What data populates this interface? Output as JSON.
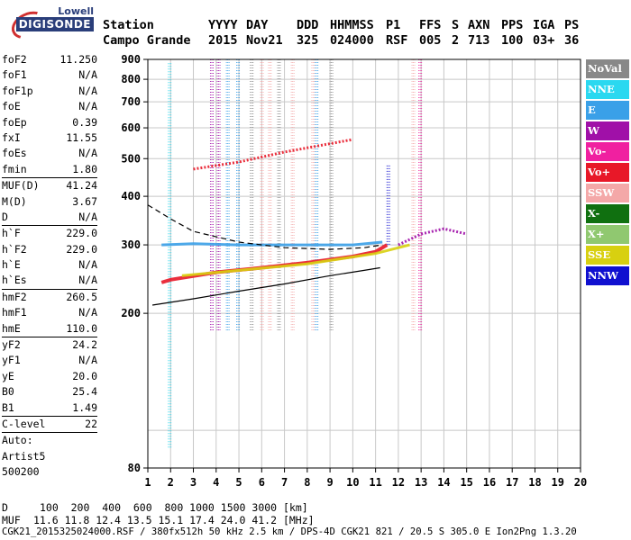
{
  "logo": {
    "line1": "Lowell",
    "line2": "DIGISONDE"
  },
  "header": {
    "labels": [
      "Station",
      "YYYY",
      "DAY",
      "DDD",
      "HHMMSS",
      "P1",
      "FFS",
      "S",
      "AXN",
      "PPS",
      "IGA",
      "PS"
    ],
    "values": [
      "Campo Grande",
      "2015",
      "Nov21",
      "325",
      "024000",
      "RSF",
      "005",
      "2",
      "713",
      "100",
      "03+",
      "36"
    ]
  },
  "params": [
    {
      "name": "foF2",
      "value": "11.250"
    },
    {
      "name": "foF1",
      "value": "N/A"
    },
    {
      "name": "foF1p",
      "value": "N/A"
    },
    {
      "name": "foE",
      "value": "N/A"
    },
    {
      "name": "foEp",
      "value": "0.39"
    },
    {
      "name": "fxI",
      "value": "11.55"
    },
    {
      "name": "foEs",
      "value": "N/A"
    },
    {
      "name": "fmin",
      "value": "1.80"
    },
    {
      "name": "MUF(D)",
      "value": "41.24"
    },
    {
      "name": "M(D)",
      "value": "3.67"
    },
    {
      "name": "D",
      "value": "N/A"
    },
    {
      "name": "h`F",
      "value": "229.0"
    },
    {
      "name": "h`F2",
      "value": "229.0"
    },
    {
      "name": "h`E",
      "value": "N/A"
    },
    {
      "name": "h`Es",
      "value": "N/A"
    },
    {
      "name": "hmF2",
      "value": "260.5"
    },
    {
      "name": "hmF1",
      "value": "N/A"
    },
    {
      "name": "hmE",
      "value": "110.0"
    },
    {
      "name": "yF2",
      "value": "24.2"
    },
    {
      "name": "yF1",
      "value": "N/A"
    },
    {
      "name": "yE",
      "value": "20.0"
    },
    {
      "name": "B0",
      "value": "25.4"
    },
    {
      "name": "B1",
      "value": "1.49"
    }
  ],
  "clevel": {
    "name": "C-level",
    "value": "22"
  },
  "auto": {
    "line1": "Auto:",
    "line2": "Artist5",
    "line3": "500200"
  },
  "legend": [
    {
      "name": "NoVal",
      "color": "#888888"
    },
    {
      "name": "NNE",
      "color": "#2ad8f0"
    },
    {
      "name": "E",
      "color": "#3aa0e8"
    },
    {
      "name": "W",
      "color": "#a010a8"
    },
    {
      "name": "Vo-",
      "color": "#f020a0"
    },
    {
      "name": "Vo+",
      "color": "#e81828"
    },
    {
      "name": "SSW",
      "color": "#f4a8a8"
    },
    {
      "name": "X-",
      "color": "#107010"
    },
    {
      "name": "X+",
      "color": "#90c870"
    },
    {
      "name": "SSE",
      "color": "#d8d010"
    },
    {
      "name": "NNW",
      "color": "#1010d0"
    }
  ],
  "bottom": {
    "dist_label": "D",
    "dist_values": "100  200  400  600  800 1000 1500 3000 [km]",
    "muf_label": "MUF",
    "muf_values": "11.6 11.8 12.4 13.5 15.1 17.4 24.0 41.2 [MHz]",
    "footer": "CGK21_2015325024000.RSF / 380fx512h 50 kHz 2.5 km / DPS-4D CGK21 821 / 20.5 S 305.0 E Ion2Png 1.3.20"
  },
  "chart_data": {
    "type": "scatter",
    "xlim": [
      1,
      20
    ],
    "ylim": [
      80,
      900
    ],
    "yscale": "log",
    "xticks": [
      1,
      2,
      3,
      4,
      5,
      6,
      7,
      8,
      9,
      10,
      11,
      12,
      13,
      14,
      15,
      16,
      17,
      18,
      19,
      20
    ],
    "yticks": [
      80,
      200,
      300,
      400,
      500,
      600,
      700,
      800,
      900
    ],
    "grid": true,
    "vertical_bands": [
      {
        "x": 1.9,
        "y": [
          90,
          880
        ],
        "color": "#2ad8f0"
      },
      {
        "x": 3.75,
        "y": [
          180,
          900
        ],
        "color": "#a010a8"
      },
      {
        "x": 4.05,
        "y": [
          180,
          900
        ],
        "color": "#a010a8"
      },
      {
        "x": 4.45,
        "y": [
          180,
          900
        ],
        "color": "#3aa0e8"
      },
      {
        "x": 4.9,
        "y": [
          180,
          900
        ],
        "color": "#3aa0e8"
      },
      {
        "x": 5.5,
        "y": [
          180,
          900
        ],
        "color": "#888888"
      },
      {
        "x": 5.95,
        "y": [
          180,
          900
        ],
        "color": "#f4a8a8"
      },
      {
        "x": 6.3,
        "y": [
          180,
          900
        ],
        "color": "#f4a8a8"
      },
      {
        "x": 6.7,
        "y": [
          180,
          900
        ],
        "color": "#888888"
      },
      {
        "x": 7.3,
        "y": [
          180,
          900
        ],
        "color": "#f4a8a8"
      },
      {
        "x": 8.2,
        "y": [
          180,
          900
        ],
        "color": "#f4a8a8"
      },
      {
        "x": 8.35,
        "y": [
          180,
          900
        ],
        "color": "#3aa0e8"
      },
      {
        "x": 9.0,
        "y": [
          180,
          900
        ],
        "color": "#888888"
      },
      {
        "x": 11.5,
        "y": [
          300,
          480
        ],
        "color": "#1010d0"
      },
      {
        "x": 12.6,
        "y": [
          180,
          900
        ],
        "color": "#f4a8a8"
      },
      {
        "x": 12.9,
        "y": [
          180,
          900
        ],
        "color": "#f020a0"
      }
    ],
    "traces": [
      {
        "name": "F-trace",
        "points": [
          [
            1.6,
            240
          ],
          [
            2,
            244
          ],
          [
            4,
            255
          ],
          [
            6,
            262
          ],
          [
            8,
            270
          ],
          [
            10,
            280
          ],
          [
            11,
            288
          ],
          [
            11.5,
            300
          ]
        ],
        "color": "#e81828"
      },
      {
        "name": "F-trace-E",
        "points": [
          [
            1.6,
            300
          ],
          [
            3,
            302
          ],
          [
            5,
            300
          ],
          [
            8,
            300
          ],
          [
            10,
            300
          ],
          [
            11.3,
            305
          ]
        ],
        "color": "#3aa0e8"
      },
      {
        "name": "F-trace-X",
        "points": [
          [
            2.5,
            250
          ],
          [
            5,
            258
          ],
          [
            8,
            268
          ],
          [
            11,
            285
          ],
          [
            12.5,
            300
          ]
        ],
        "color": "#d8d010"
      },
      {
        "name": "oblique",
        "points": [
          [
            3,
            470
          ],
          [
            5,
            490
          ],
          [
            7,
            520
          ],
          [
            10,
            560
          ]
        ],
        "color": "#e81828"
      },
      {
        "name": "scatter-12-15",
        "points": [
          [
            12,
            300
          ],
          [
            13,
            320
          ],
          [
            14,
            330
          ],
          [
            15,
            320
          ]
        ],
        "color": "#a010a8"
      }
    ],
    "profile_curve": [
      [
        1.2,
        210
      ],
      [
        3,
        218
      ],
      [
        5,
        228
      ],
      [
        7,
        238
      ],
      [
        9,
        250
      ],
      [
        10.5,
        258
      ],
      [
        11.2,
        262
      ]
    ],
    "dashed_curve": [
      [
        1,
        380
      ],
      [
        2,
        350
      ],
      [
        3,
        325
      ],
      [
        5,
        305
      ],
      [
        7,
        295
      ],
      [
        9,
        292
      ],
      [
        10.5,
        295
      ],
      [
        11.3,
        300
      ]
    ]
  }
}
